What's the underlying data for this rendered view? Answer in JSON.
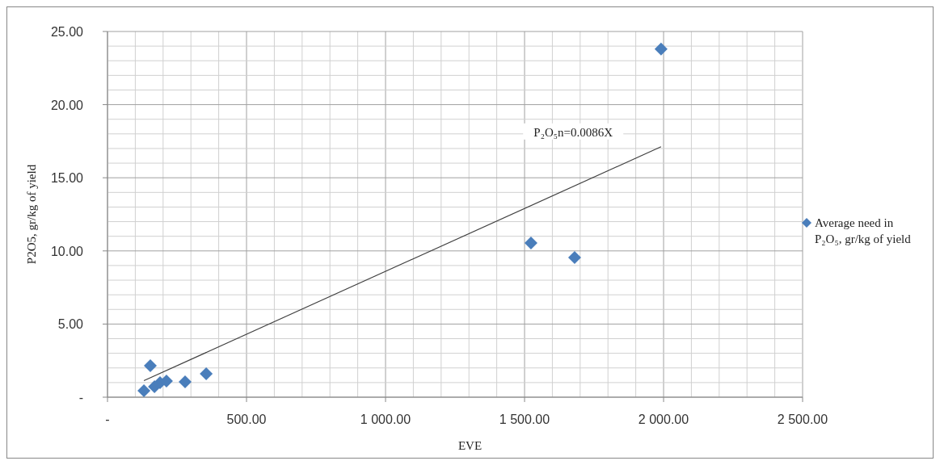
{
  "chart_data": {
    "type": "scatter",
    "xlabel": "EVE",
    "ylabel": "P2O5, gr/kg of yield",
    "series": [
      {
        "name": "Average need in P₂O₅, gr/kg of yield",
        "color": "#4a7ebb",
        "marker": "diamond",
        "x": [
          131,
          154,
          169,
          189,
          212,
          279,
          355,
          1523,
          1680,
          1991
        ],
        "values": [
          0.44,
          2.15,
          0.72,
          0.99,
          1.1,
          1.05,
          1.6,
          10.54,
          9.55,
          23.8
        ]
      },
      {
        "type": "line",
        "color": "#404040",
        "x": [
          131,
          1991
        ],
        "values": [
          1.13,
          17.12
        ]
      }
    ],
    "annotations": [
      "P₂O₅n=0.0086X"
    ],
    "xlim": [
      0,
      2500
    ],
    "ylim": [
      0,
      25
    ],
    "xticks": [
      {
        "value": 0,
        "label": "-"
      },
      {
        "value": 100,
        "label": null
      },
      {
        "value": 200,
        "label": null
      },
      {
        "value": 300,
        "label": null
      },
      {
        "value": 400,
        "label": null
      },
      {
        "value": 500,
        "label": "500.00"
      },
      {
        "value": 600,
        "label": null
      },
      {
        "value": 700,
        "label": null
      },
      {
        "value": 800,
        "label": null
      },
      {
        "value": 900,
        "label": null
      },
      {
        "value": 1000,
        "label": "1 000.00"
      },
      {
        "value": 1100,
        "label": null
      },
      {
        "value": 1200,
        "label": null
      },
      {
        "value": 1300,
        "label": null
      },
      {
        "value": 1400,
        "label": null
      },
      {
        "value": 1500,
        "label": "1 500.00"
      },
      {
        "value": 1600,
        "label": null
      },
      {
        "value": 1700,
        "label": null
      },
      {
        "value": 1800,
        "label": null
      },
      {
        "value": 1900,
        "label": null
      },
      {
        "value": 2000,
        "label": "2 000.00"
      },
      {
        "value": 2100,
        "label": null
      },
      {
        "value": 2200,
        "label": null
      },
      {
        "value": 2300,
        "label": null
      },
      {
        "value": 2400,
        "label": null
      },
      {
        "value": 2500,
        "label": "2 500.00"
      }
    ],
    "yticks": [
      {
        "value": 0,
        "label": "-"
      },
      {
        "value": 1,
        "label": null
      },
      {
        "value": 2,
        "label": null
      },
      {
        "value": 3,
        "label": null
      },
      {
        "value": 4,
        "label": null
      },
      {
        "value": 5,
        "label": "5.00"
      },
      {
        "value": 6,
        "label": null
      },
      {
        "value": 7,
        "label": null
      },
      {
        "value": 8,
        "label": null
      },
      {
        "value": 9,
        "label": null
      },
      {
        "value": 10,
        "label": "10.00"
      },
      {
        "value": 11,
        "label": null
      },
      {
        "value": 12,
        "label": null
      },
      {
        "value": 13,
        "label": null
      },
      {
        "value": 14,
        "label": null
      },
      {
        "value": 15,
        "label": "15.00"
      },
      {
        "value": 16,
        "label": null
      },
      {
        "value": 17,
        "label": null
      },
      {
        "value": 18,
        "label": null
      },
      {
        "value": 19,
        "label": null
      },
      {
        "value": 20,
        "label": "20.00"
      },
      {
        "value": 21,
        "label": null
      },
      {
        "value": 22,
        "label": null
      },
      {
        "value": 23,
        "label": null
      },
      {
        "value": 24,
        "label": null
      },
      {
        "value": 25,
        "label": "25.00"
      }
    ],
    "grid": true,
    "legend": "right"
  }
}
